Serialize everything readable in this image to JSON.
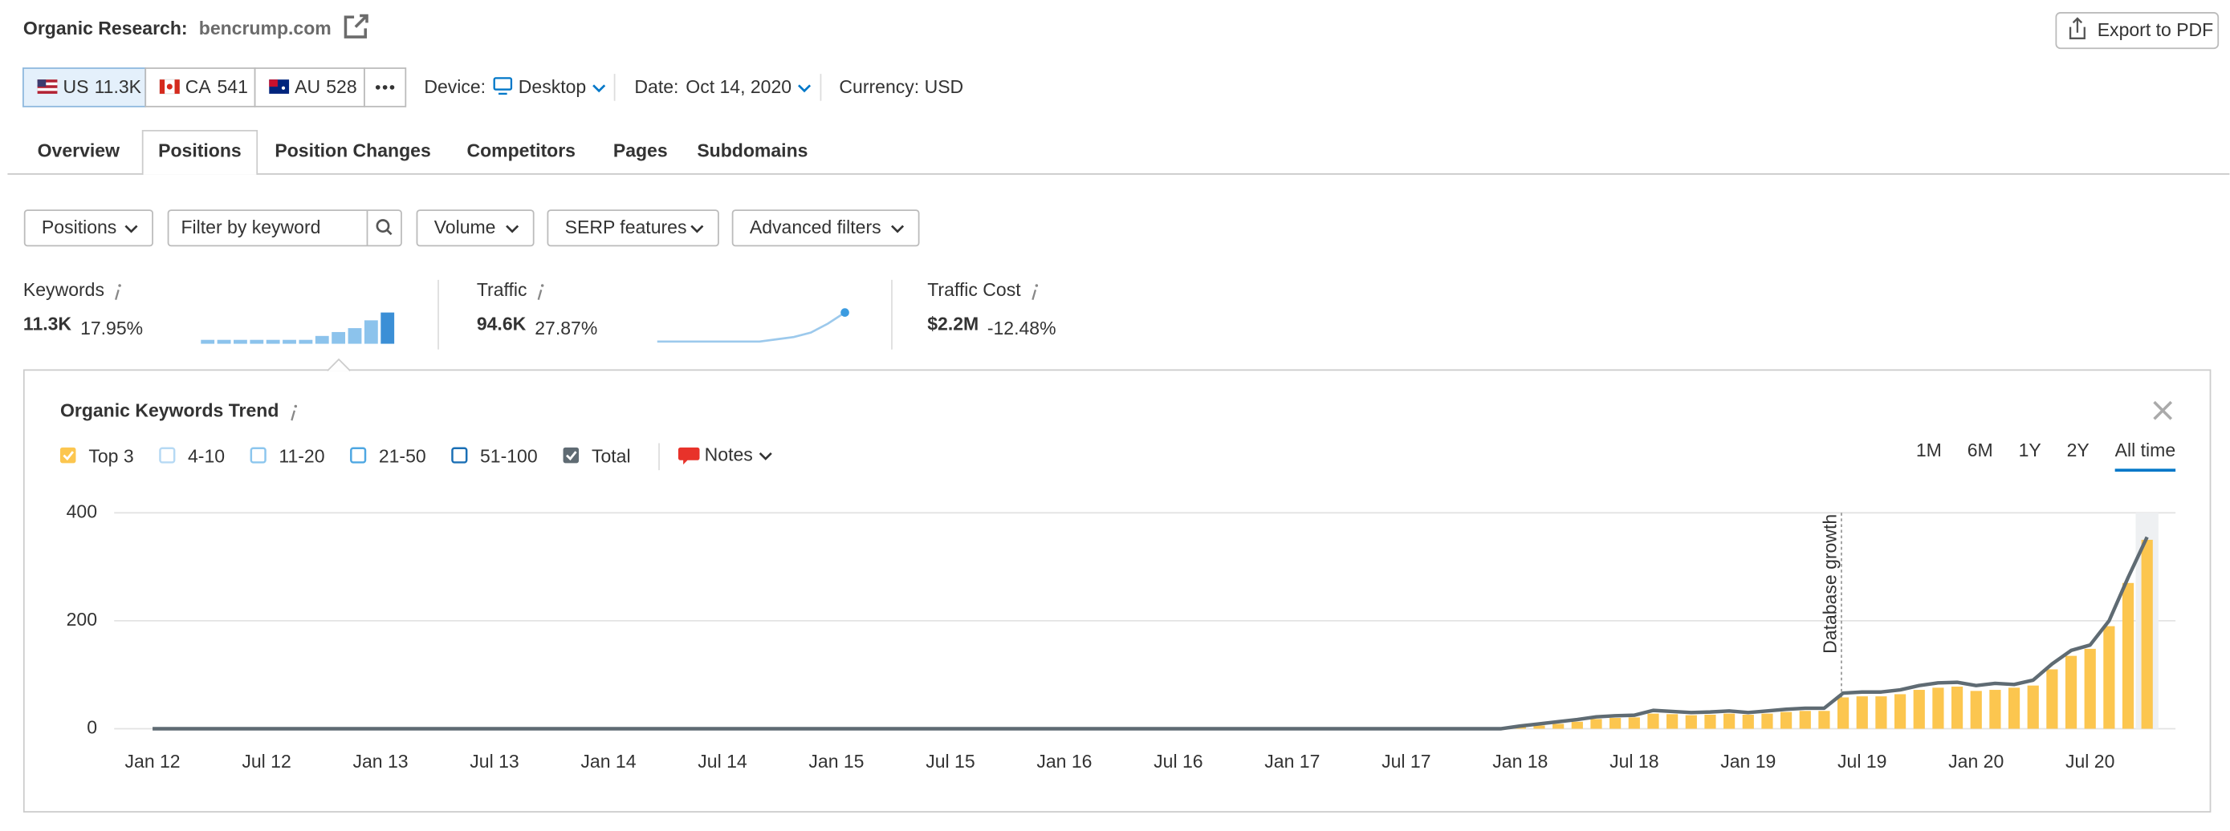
{
  "header": {
    "title": "Organic Research:",
    "domain": "bencrump.com",
    "export": "Export to PDF"
  },
  "databases": [
    {
      "code": "US",
      "count": "11.3K",
      "active": true
    },
    {
      "code": "CA",
      "count": "541",
      "active": false
    },
    {
      "code": "AU",
      "count": "528",
      "active": false
    }
  ],
  "settings": {
    "device_label": "Device:",
    "device": "Desktop",
    "date_label": "Date:",
    "date": "Oct 14, 2020",
    "currency": "Currency: USD"
  },
  "tabs": [
    "Overview",
    "Positions",
    "Position Changes",
    "Competitors",
    "Pages",
    "Subdomains"
  ],
  "active_tab": 1,
  "filters": [
    "Positions",
    "Volume",
    "SERP features",
    "Advanced filters"
  ],
  "search_placeholder": "Filter by keyword",
  "metrics": [
    {
      "label": "Keywords",
      "value": "11.3K",
      "change": "17.95%",
      "direction": "up",
      "sparkline": {
        "type": "bar",
        "values": [
          1,
          1,
          1,
          1,
          1,
          1,
          1,
          2,
          3,
          4,
          6,
          8
        ]
      }
    },
    {
      "label": "Traffic",
      "value": "94.6K",
      "change": "27.87%",
      "direction": "up",
      "sparkline": {
        "type": "line",
        "values": [
          1,
          1,
          1,
          1,
          1,
          1,
          1,
          2,
          3,
          5,
          9,
          14
        ]
      }
    },
    {
      "label": "Traffic Cost",
      "value": "$2.2M",
      "change": "-12.48%",
      "direction": "down"
    }
  ],
  "chart_data": {
    "type": "bar",
    "title": "Organic Keywords Trend",
    "notes": "Notes",
    "ranges": [
      "1M",
      "6M",
      "1Y",
      "2Y",
      "All time"
    ],
    "active_range": 4,
    "annotation": "Database growth",
    "categories": [
      "Jan 12",
      null,
      null,
      null,
      null,
      null,
      "Jul 12",
      null,
      null,
      null,
      null,
      null,
      "Jan 13",
      null,
      null,
      null,
      null,
      null,
      "Jul 13",
      null,
      null,
      null,
      null,
      null,
      "Jan 14",
      null,
      null,
      null,
      null,
      null,
      "Jul 14",
      null,
      null,
      null,
      null,
      null,
      "Jan 15",
      null,
      null,
      null,
      null,
      null,
      "Jul 15",
      null,
      null,
      null,
      null,
      null,
      "Jan 16",
      null,
      null,
      null,
      null,
      null,
      "Jul 16",
      null,
      null,
      null,
      null,
      null,
      "Jan 17",
      null,
      null,
      null,
      null,
      null,
      "Jul 17",
      null,
      null,
      null,
      null,
      null,
      "Jan 18",
      null,
      null,
      null,
      null,
      null,
      "Jul 18",
      null,
      null,
      null,
      null,
      null,
      "Jan 19",
      null,
      null,
      null,
      null,
      null,
      "Jul 19",
      null,
      null,
      null,
      null,
      null,
      "Jan 20",
      null,
      null,
      null,
      null,
      null,
      "Jul 20",
      null,
      null,
      null
    ],
    "series": [
      {
        "name": "Top 3",
        "color": "#fcc64f",
        "checked": true,
        "values": [
          0,
          0,
          0,
          0,
          0,
          0,
          0,
          0,
          0,
          0,
          0,
          0,
          0,
          0,
          0,
          0,
          0,
          0,
          0,
          0,
          0,
          0,
          0,
          0,
          0,
          0,
          0,
          0,
          0,
          0,
          0,
          0,
          0,
          0,
          0,
          0,
          0,
          0,
          0,
          0,
          0,
          0,
          0,
          0,
          0,
          0,
          0,
          0,
          0,
          0,
          0,
          0,
          0,
          0,
          0,
          0,
          0,
          0,
          0,
          0,
          0,
          0,
          0,
          0,
          0,
          0,
          0,
          0,
          0,
          0,
          0,
          0,
          3,
          6,
          9,
          13,
          18,
          20,
          21,
          28,
          27,
          25,
          26,
          28,
          26,
          28,
          31,
          33,
          33,
          58,
          60,
          60,
          64,
          72,
          76,
          78,
          70,
          72,
          76,
          80,
          110,
          135,
          148,
          190,
          270,
          350
        ]
      },
      {
        "name": "4-10",
        "color": "#b6d9f4",
        "checked": false
      },
      {
        "name": "11-20",
        "color": "#8cc6ee",
        "checked": false
      },
      {
        "name": "21-50",
        "color": "#4ea7e2",
        "checked": false
      },
      {
        "name": "51-100",
        "color": "#1a6fb5",
        "checked": false
      },
      {
        "name": "Total",
        "color": "#5f6b73",
        "checked": true,
        "type": "line",
        "values": [
          0,
          0,
          0,
          0,
          0,
          0,
          0,
          0,
          0,
          0,
          0,
          0,
          0,
          0,
          0,
          0,
          0,
          0,
          0,
          0,
          0,
          0,
          0,
          0,
          0,
          0,
          0,
          0,
          0,
          0,
          0,
          0,
          0,
          0,
          0,
          0,
          0,
          0,
          0,
          0,
          0,
          0,
          0,
          0,
          0,
          0,
          0,
          0,
          0,
          0,
          0,
          0,
          0,
          0,
          0,
          0,
          0,
          0,
          0,
          0,
          0,
          0,
          0,
          0,
          0,
          0,
          0,
          0,
          0,
          0,
          0,
          0,
          5,
          9,
          13,
          17,
          22,
          24,
          25,
          34,
          32,
          30,
          31,
          33,
          30,
          33,
          36,
          38,
          38,
          66,
          68,
          68,
          72,
          80,
          85,
          86,
          80,
          84,
          82,
          90,
          120,
          145,
          155,
          200,
          280,
          355
        ]
      }
    ],
    "ylim": [
      0,
      400
    ],
    "yticks": [
      0,
      200,
      400
    ],
    "grid": true
  }
}
